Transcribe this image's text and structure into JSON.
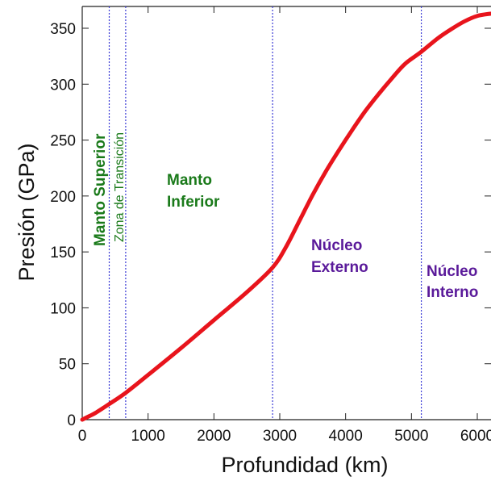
{
  "chart_data": {
    "type": "line",
    "title": "",
    "xlabel": "Profundidad (km)",
    "ylabel": "Presión (GPa)",
    "xlim": [
      0,
      6371
    ],
    "ylim": [
      0,
      370
    ],
    "x_ticks": [
      0,
      1000,
      2000,
      3000,
      4000,
      5000,
      6000
    ],
    "y_ticks": [
      0,
      50,
      100,
      150,
      200,
      250,
      300,
      350
    ],
    "grid": false,
    "series": [
      {
        "color": "#e8141c",
        "x": [
          0,
          100,
          200,
          410,
          660,
          1000,
          1500,
          2000,
          2500,
          2891,
          3100,
          3300,
          3500,
          3700,
          3900,
          4100,
          4300,
          4500,
          4700,
          4900,
          5150,
          5400,
          5600,
          5800,
          6000,
          6200,
          6371
        ],
        "y": [
          0,
          3,
          6,
          14,
          24,
          40,
          64,
          89,
          114,
          136,
          155,
          178,
          201,
          222,
          241,
          259,
          276,
          291,
          305,
          318,
          329,
          341,
          349,
          356,
          361,
          363,
          364
        ]
      }
    ],
    "boundaries": [
      410,
      660,
      2891,
      5150
    ],
    "boundary_color": "#3b3bd6",
    "annotations": {
      "upper_mantle": "Manto Superior",
      "transition_zone": "Zona de Transición",
      "lower_mantle": [
        "Manto",
        "Inferior"
      ],
      "outer_core": [
        "Núcleo",
        "Externo"
      ],
      "inner_core": [
        "Núcleo",
        "Interno"
      ]
    },
    "annotation_colors": {
      "mantle": "#1a7a1a",
      "core": "#5a1a9a"
    }
  }
}
